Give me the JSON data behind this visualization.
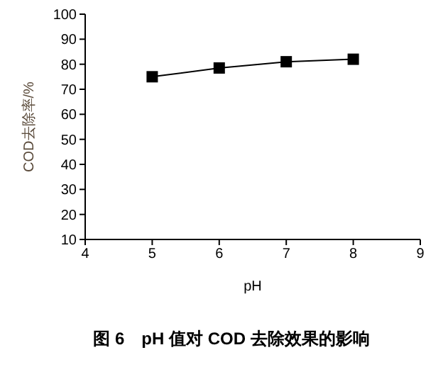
{
  "chart_data": {
    "type": "line",
    "title": "图 6　pH 值对 COD 去除效果的影响",
    "xlabel": "pH",
    "ylabel": "COD去除率/%",
    "x": [
      5,
      6,
      7,
      8
    ],
    "series": [
      {
        "color": "#000000",
        "values": [
          75,
          78.5,
          81,
          82
        ]
      }
    ],
    "xlim": [
      4,
      9
    ],
    "xticks": [
      4,
      5,
      6,
      7,
      8,
      9
    ],
    "ylim": [
      10,
      100
    ],
    "yticks": [
      10,
      20,
      30,
      40,
      50,
      60,
      70,
      80,
      90,
      100
    ],
    "grid": false,
    "legend": false,
    "marker": "square",
    "line_style": "solid"
  }
}
